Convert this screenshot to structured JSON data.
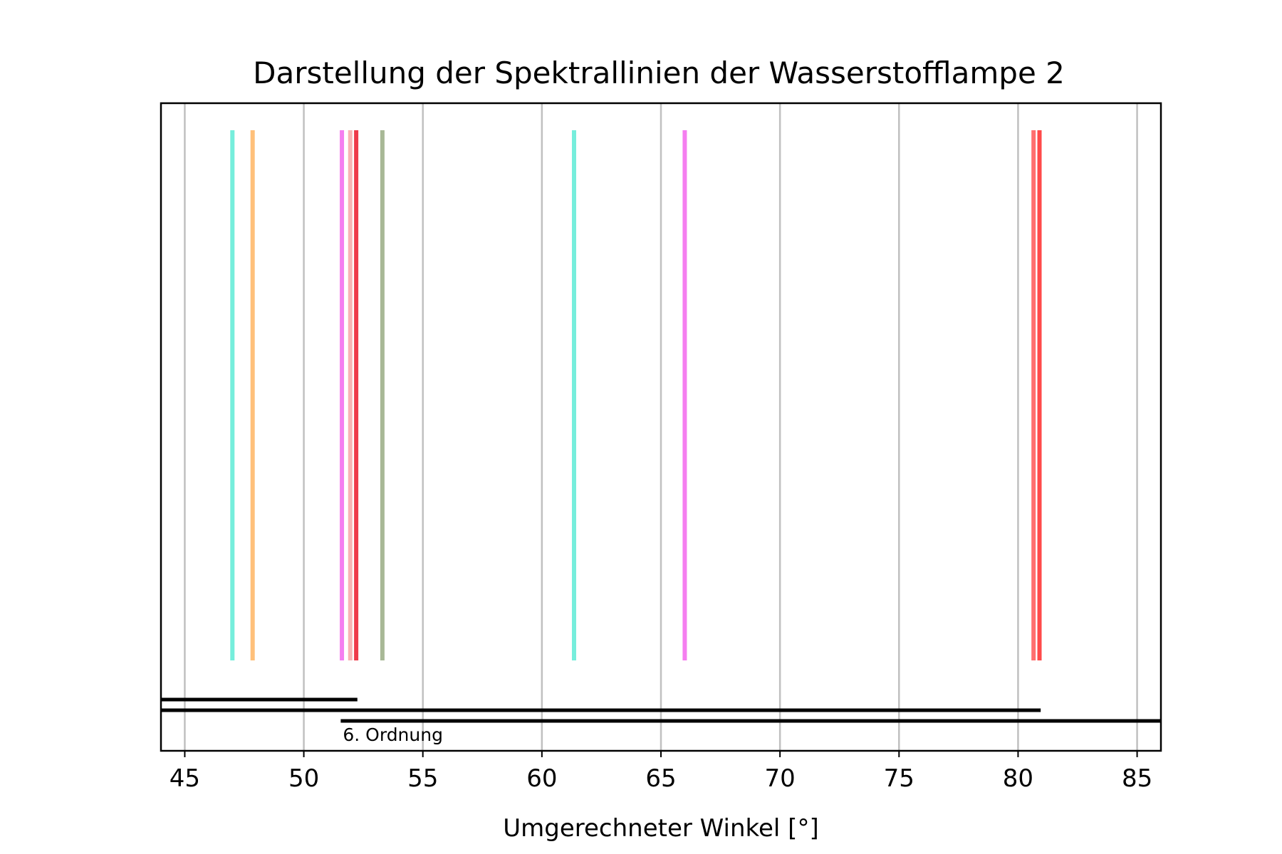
{
  "chart_data": {
    "type": "scatter",
    "title": "Darstellung der Spektrallinien der Wasserstofflampe 2",
    "xlabel": "Umgerechneter Winkel [°]",
    "ylabel": "",
    "xlim": [
      44,
      86
    ],
    "xticks": [
      45,
      50,
      55,
      60,
      65,
      70,
      75,
      80,
      85
    ],
    "grid": "vertical",
    "legend": "none",
    "spectral_lines": [
      {
        "x": 47.0,
        "color": "#76EEDC"
      },
      {
        "x": 47.85,
        "color": "#FFC07A"
      },
      {
        "x": 51.6,
        "color": "#F57EF0"
      },
      {
        "x": 51.95,
        "color": "#F8B4B4"
      },
      {
        "x": 52.2,
        "color": "#EE3A4A"
      },
      {
        "x": 53.3,
        "color": "#A8B896"
      },
      {
        "x": 61.35,
        "color": "#76EEDC"
      },
      {
        "x": 66.0,
        "color": "#F57EF0"
      },
      {
        "x": 80.65,
        "color": "#FF6F6F"
      },
      {
        "x": 80.9,
        "color": "#FF4A4A"
      }
    ],
    "order_ranges": [
      {
        "start": 44,
        "end": 52.25
      },
      {
        "start": 44,
        "end": 80.95
      },
      {
        "start": 51.55,
        "end": 86,
        "label": "6. Ordnung"
      }
    ]
  }
}
